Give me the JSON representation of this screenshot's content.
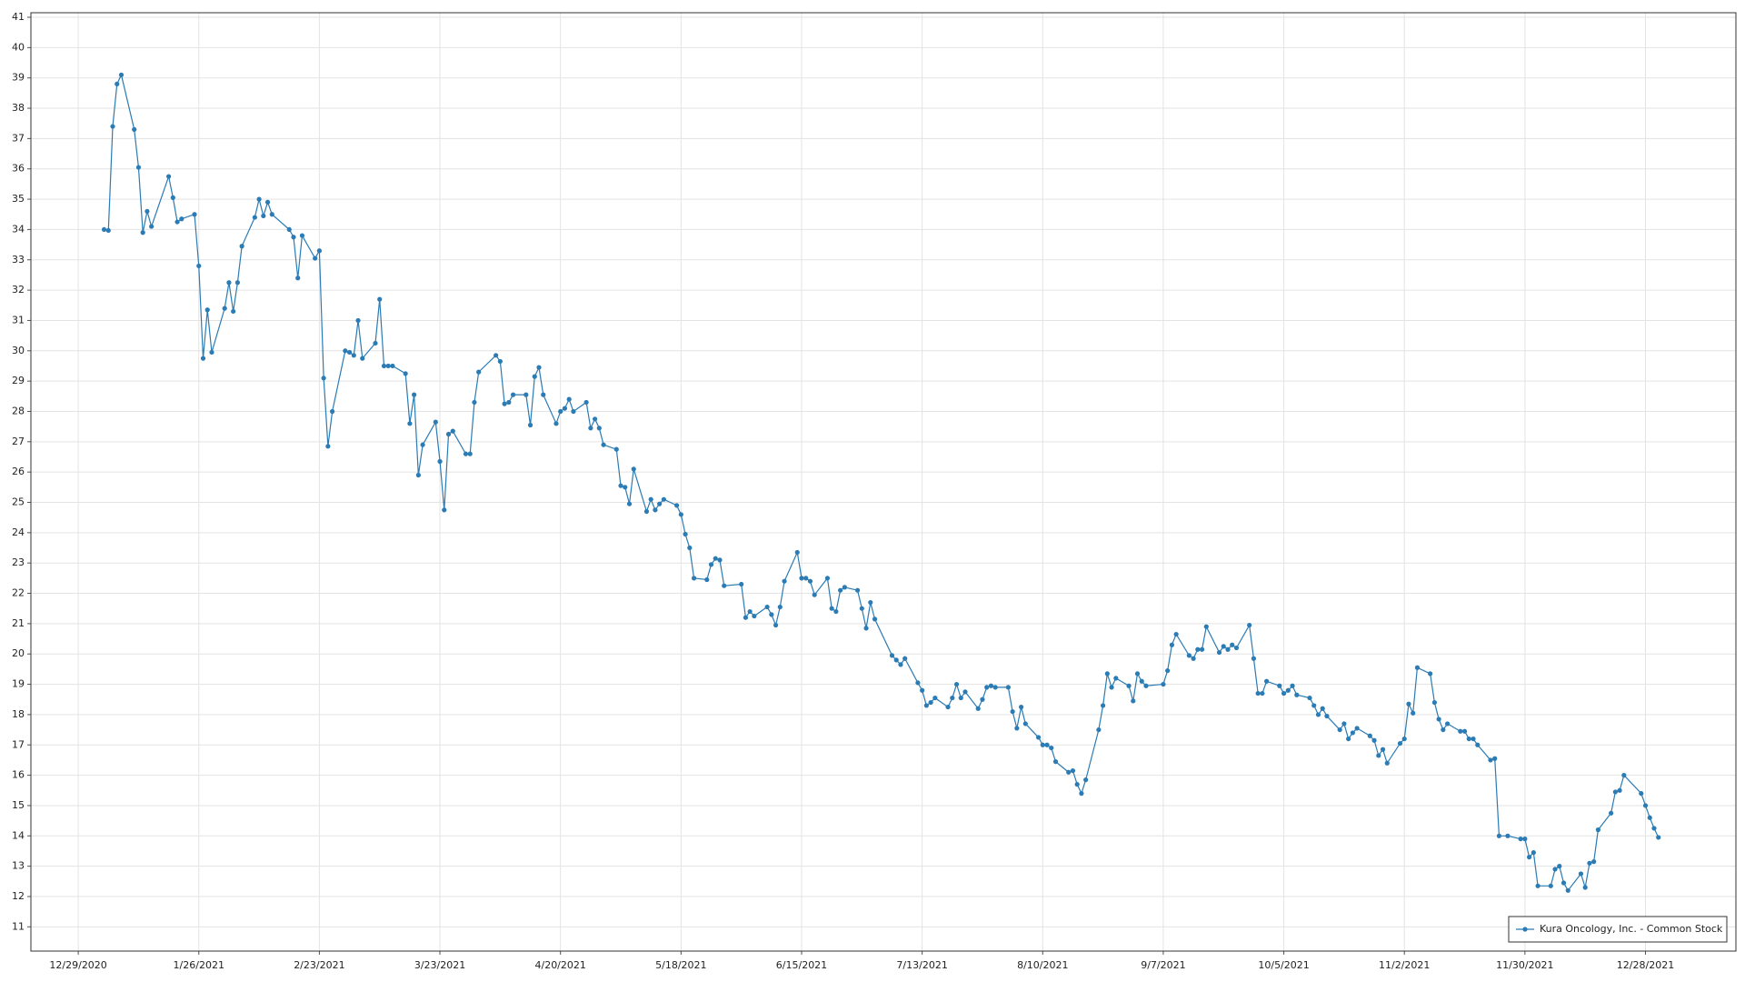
{
  "chart_data": {
    "type": "line",
    "x": [
      "1/4/2021",
      "1/5/2021",
      "1/6/2021",
      "1/7/2021",
      "1/8/2021",
      "1/11/2021",
      "1/12/2021",
      "1/13/2021",
      "1/14/2021",
      "1/15/2021",
      "1/19/2021",
      "1/20/2021",
      "1/21/2021",
      "1/22/2021",
      "1/25/2021",
      "1/26/2021",
      "1/27/2021",
      "1/28/2021",
      "1/29/2021",
      "2/1/2021",
      "2/2/2021",
      "2/3/2021",
      "2/4/2021",
      "2/5/2021",
      "2/8/2021",
      "2/9/2021",
      "2/10/2021",
      "2/11/2021",
      "2/12/2021",
      "2/16/2021",
      "2/17/2021",
      "2/18/2021",
      "2/19/2021",
      "2/22/2021",
      "2/23/2021",
      "2/24/2021",
      "2/25/2021",
      "2/26/2021",
      "3/1/2021",
      "3/2/2021",
      "3/3/2021",
      "3/4/2021",
      "3/5/2021",
      "3/8/2021",
      "3/9/2021",
      "3/10/2021",
      "3/11/2021",
      "3/12/2021",
      "3/15/2021",
      "3/16/2021",
      "3/17/2021",
      "3/18/2021",
      "3/19/2021",
      "3/22/2021",
      "3/23/2021",
      "3/24/2021",
      "3/25/2021",
      "3/26/2021",
      "3/29/2021",
      "3/30/2021",
      "3/31/2021",
      "4/1/2021",
      "4/5/2021",
      "4/6/2021",
      "4/7/2021",
      "4/8/2021",
      "4/9/2021",
      "4/12/2021",
      "4/13/2021",
      "4/14/2021",
      "4/15/2021",
      "4/16/2021",
      "4/19/2021",
      "4/20/2021",
      "4/21/2021",
      "4/22/2021",
      "4/23/2021",
      "4/26/2021",
      "4/27/2021",
      "4/28/2021",
      "4/29/2021",
      "4/30/2021",
      "5/3/2021",
      "5/4/2021",
      "5/5/2021",
      "5/6/2021",
      "5/7/2021",
      "5/10/2021",
      "5/11/2021",
      "5/12/2021",
      "5/13/2021",
      "5/14/2021",
      "5/17/2021",
      "5/18/2021",
      "5/19/2021",
      "5/20/2021",
      "5/21/2021",
      "5/24/2021",
      "5/25/2021",
      "5/26/2021",
      "5/27/2021",
      "5/28/2021",
      "6/1/2021",
      "6/2/2021",
      "6/3/2021",
      "6/4/2021",
      "6/7/2021",
      "6/8/2021",
      "6/9/2021",
      "6/10/2021",
      "6/11/2021",
      "6/14/2021",
      "6/15/2021",
      "6/16/2021",
      "6/17/2021",
      "6/18/2021",
      "6/21/2021",
      "6/22/2021",
      "6/23/2021",
      "6/24/2021",
      "6/25/2021",
      "6/28/2021",
      "6/29/2021",
      "6/30/2021",
      "7/1/2021",
      "7/2/2021",
      "7/6/2021",
      "7/7/2021",
      "7/8/2021",
      "7/9/2021",
      "7/12/2021",
      "7/13/2021",
      "7/14/2021",
      "7/15/2021",
      "7/16/2021",
      "7/19/2021",
      "7/20/2021",
      "7/21/2021",
      "7/22/2021",
      "7/23/2021",
      "7/26/2021",
      "7/27/2021",
      "7/28/2021",
      "7/29/2021",
      "7/30/2021",
      "8/2/2021",
      "8/3/2021",
      "8/4/2021",
      "8/5/2021",
      "8/6/2021",
      "8/9/2021",
      "8/10/2021",
      "8/11/2021",
      "8/12/2021",
      "8/13/2021",
      "8/16/2021",
      "8/17/2021",
      "8/18/2021",
      "8/19/2021",
      "8/20/2021",
      "8/23/2021",
      "8/24/2021",
      "8/25/2021",
      "8/26/2021",
      "8/27/2021",
      "8/30/2021",
      "8/31/2021",
      "9/1/2021",
      "9/2/2021",
      "9/3/2021",
      "9/7/2021",
      "9/8/2021",
      "9/9/2021",
      "9/10/2021",
      "9/13/2021",
      "9/14/2021",
      "9/15/2021",
      "9/16/2021",
      "9/17/2021",
      "9/20/2021",
      "9/21/2021",
      "9/22/2021",
      "9/23/2021",
      "9/24/2021",
      "9/27/2021",
      "9/28/2021",
      "9/29/2021",
      "9/30/2021",
      "10/1/2021",
      "10/4/2021",
      "10/5/2021",
      "10/6/2021",
      "10/7/2021",
      "10/8/2021",
      "10/11/2021",
      "10/12/2021",
      "10/13/2021",
      "10/14/2021",
      "10/15/2021",
      "10/18/2021",
      "10/19/2021",
      "10/20/2021",
      "10/21/2021",
      "10/22/2021",
      "10/25/2021",
      "10/26/2021",
      "10/27/2021",
      "10/28/2021",
      "10/29/2021",
      "11/1/2021",
      "11/2/2021",
      "11/3/2021",
      "11/4/2021",
      "11/5/2021",
      "11/8/2021",
      "11/9/2021",
      "11/10/2021",
      "11/11/2021",
      "11/12/2021",
      "11/15/2021",
      "11/16/2021",
      "11/17/2021",
      "11/18/2021",
      "11/19/2021",
      "11/22/2021",
      "11/23/2021",
      "11/24/2021",
      "11/26/2021",
      "11/29/2021",
      "11/30/2021",
      "12/1/2021",
      "12/2/2021",
      "12/3/2021",
      "12/6/2021",
      "12/7/2021",
      "12/8/2021",
      "12/9/2021",
      "12/10/2021",
      "12/13/2021",
      "12/14/2021",
      "12/15/2021",
      "12/16/2021",
      "12/17/2021",
      "12/20/2021",
      "12/21/2021",
      "12/22/2021",
      "12/23/2021",
      "12/27/2021",
      "12/28/2021",
      "12/29/2021",
      "12/30/2021",
      "12/31/2021"
    ],
    "series": [
      {
        "name": "Kura Oncology, Inc. - Common Stock",
        "color": "#2b7bb4",
        "values": [
          34.0,
          33.97,
          37.4,
          38.8,
          39.1,
          37.3,
          36.05,
          33.9,
          34.6,
          34.1,
          35.75,
          35.05,
          34.25,
          34.35,
          34.5,
          32.8,
          29.75,
          31.35,
          29.95,
          31.4,
          32.25,
          31.3,
          32.25,
          33.45,
          34.4,
          35.0,
          34.45,
          34.9,
          34.5,
          34.0,
          33.75,
          32.4,
          33.8,
          33.05,
          33.3,
          29.1,
          26.85,
          28.0,
          30.0,
          29.95,
          29.85,
          31.0,
          29.75,
          30.25,
          31.7,
          29.5,
          29.5,
          29.5,
          29.25,
          27.6,
          28.55,
          25.9,
          26.9,
          27.65,
          26.35,
          24.75,
          27.25,
          27.35,
          26.6,
          26.6,
          28.3,
          29.3,
          29.85,
          29.65,
          28.25,
          28.3,
          28.55,
          28.55,
          27.55,
          29.15,
          29.45,
          28.55,
          27.6,
          28.0,
          28.1,
          28.4,
          28.0,
          28.3,
          27.45,
          27.75,
          27.45,
          26.9,
          26.75,
          25.55,
          25.5,
          24.95,
          26.1,
          24.7,
          25.1,
          24.75,
          24.95,
          25.1,
          24.9,
          24.6,
          23.95,
          23.5,
          22.5,
          22.45,
          22.95,
          23.15,
          23.1,
          22.25,
          22.3,
          21.2,
          21.4,
          21.25,
          21.55,
          21.3,
          20.95,
          21.55,
          22.4,
          23.35,
          22.5,
          22.5,
          22.4,
          21.95,
          22.5,
          21.5,
          21.4,
          22.1,
          22.2,
          22.1,
          21.5,
          20.85,
          21.7,
          21.15,
          19.95,
          19.8,
          19.65,
          19.85,
          19.05,
          18.8,
          18.3,
          18.4,
          18.55,
          18.25,
          18.55,
          19.0,
          18.55,
          18.75,
          18.2,
          18.5,
          18.9,
          18.95,
          18.9,
          18.9,
          18.1,
          17.55,
          18.25,
          17.7,
          17.25,
          17.0,
          17.0,
          16.9,
          16.45,
          16.1,
          16.15,
          15.7,
          15.4,
          15.85,
          17.5,
          18.3,
          19.35,
          18.9,
          19.2,
          18.95,
          18.45,
          19.35,
          19.1,
          18.95,
          19.0,
          19.45,
          20.3,
          20.65,
          19.95,
          19.85,
          20.15,
          20.15,
          20.9,
          20.05,
          20.25,
          20.15,
          20.3,
          20.2,
          20.95,
          19.85,
          18.7,
          18.7,
          19.1,
          18.95,
          18.7,
          18.8,
          18.95,
          18.65,
          18.55,
          18.3,
          18.0,
          18.2,
          17.95,
          17.5,
          17.7,
          17.2,
          17.4,
          17.55,
          17.3,
          17.15,
          16.65,
          16.85,
          16.4,
          17.05,
          17.2,
          18.35,
          18.05,
          19.55,
          19.35,
          18.4,
          17.85,
          17.5,
          17.7,
          17.45,
          17.45,
          17.2,
          17.2,
          17.0,
          16.5,
          16.55,
          14.0,
          14.0,
          13.9,
          13.9,
          13.3,
          13.45,
          12.35,
          12.35,
          12.9,
          13.0,
          12.45,
          12.2,
          12.75,
          12.3,
          13.1,
          13.15,
          14.2,
          14.75,
          15.45,
          15.5,
          16.0,
          15.4,
          15.0,
          14.6,
          14.25,
          13.95
        ]
      }
    ],
    "xlim": [
      "12/18/2020",
      "1/18/2022"
    ],
    "xticks": [
      "12/29/2020",
      "1/26/2021",
      "2/23/2021",
      "3/23/2021",
      "4/20/2021",
      "5/18/2021",
      "6/15/2021",
      "7/13/2021",
      "8/10/2021",
      "9/7/2021",
      "10/5/2021",
      "11/2/2021",
      "11/30/2021",
      "12/28/2021"
    ],
    "ylim": [
      10.2,
      41.15
    ],
    "yticks": [
      11,
      12,
      13,
      14,
      15,
      16,
      17,
      18,
      19,
      20,
      21,
      22,
      23,
      24,
      25,
      26,
      27,
      28,
      29,
      30,
      31,
      32,
      33,
      34,
      35,
      36,
      37,
      38,
      39,
      40,
      41
    ],
    "grid": true,
    "legend": "lower right"
  }
}
